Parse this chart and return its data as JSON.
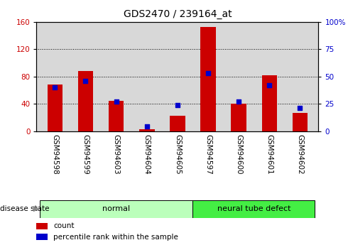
{
  "title": "GDS2470 / 239164_at",
  "samples": [
    "GSM94598",
    "GSM94599",
    "GSM94603",
    "GSM94604",
    "GSM94605",
    "GSM94597",
    "GSM94600",
    "GSM94601",
    "GSM94602"
  ],
  "red_values": [
    68,
    88,
    44,
    3,
    22,
    153,
    40,
    82,
    27
  ],
  "blue_values": [
    40,
    46,
    27,
    4,
    24,
    53,
    27,
    42,
    21
  ],
  "red_color": "#cc0000",
  "blue_color": "#0000cc",
  "left_ylim": [
    0,
    160
  ],
  "right_ylim": [
    0,
    100
  ],
  "left_yticks": [
    0,
    40,
    80,
    120,
    160
  ],
  "right_yticks": [
    0,
    25,
    50,
    75,
    100
  ],
  "disease_groups": [
    {
      "label": "normal",
      "start": 0,
      "end": 5,
      "color": "#bbffbb"
    },
    {
      "label": "neural tube defect",
      "start": 5,
      "end": 9,
      "color": "#44ee44"
    }
  ],
  "disease_state_label": "disease state",
  "legend_items": [
    {
      "label": "count",
      "color": "#cc0000"
    },
    {
      "label": "percentile rank within the sample",
      "color": "#0000cc"
    }
  ],
  "bar_width": 0.5,
  "tick_fontsize": 7.5,
  "title_fontsize": 10,
  "grid_linestyle": ":",
  "grid_color": "black",
  "plot_bg_color": "#d8d8d8",
  "white_bg": "#ffffff"
}
